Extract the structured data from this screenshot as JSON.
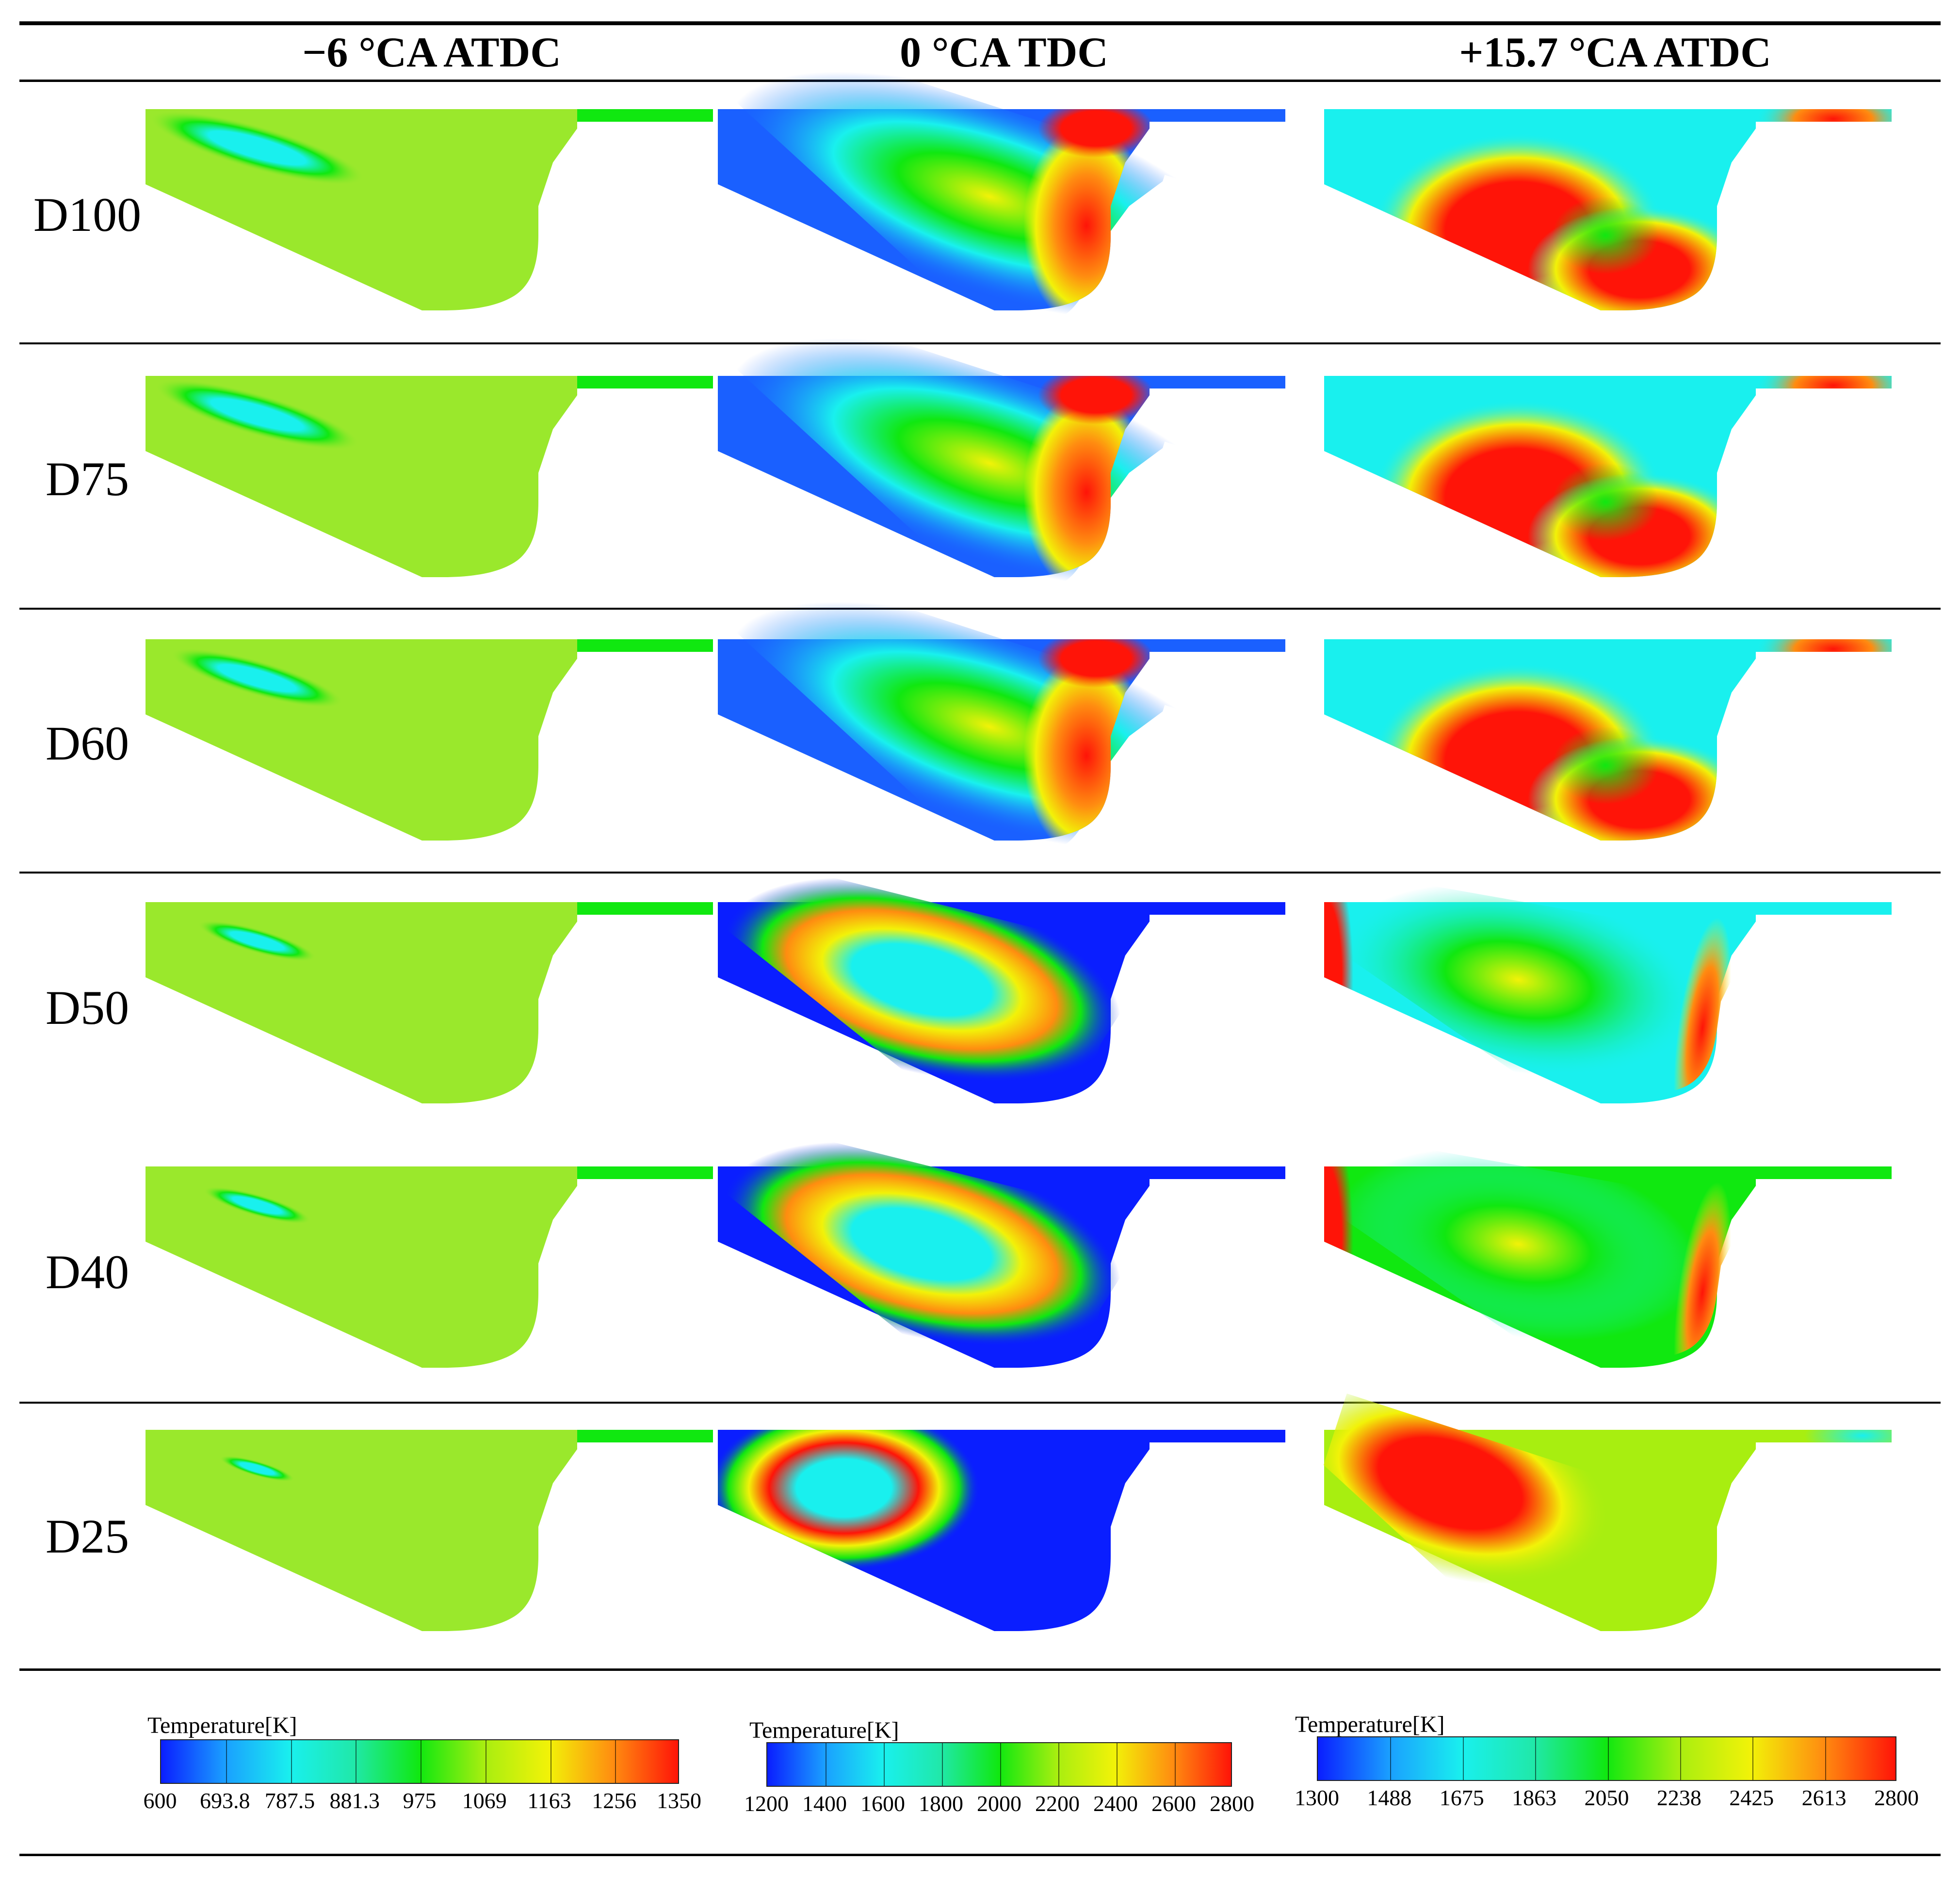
{
  "columns": [
    "−6 °CA ATDC",
    "0 °CA TDC",
    "+15.7 °CA ATDC"
  ],
  "rows": [
    "D100",
    "D75",
    "D60",
    "D50",
    "D40",
    "D25"
  ],
  "legends": [
    {
      "title": "Temperature[K]",
      "ticks": [
        "600",
        "693.8",
        "787.5",
        "881.3",
        "975",
        "1069",
        "1163",
        "1256",
        "1350"
      ]
    },
    {
      "title": "Temperature[K]",
      "ticks": [
        "1200",
        "1400",
        "1600",
        "1800",
        "2000",
        "2200",
        "2400",
        "2600",
        "2800"
      ]
    },
    {
      "title": "Temperature[K]",
      "ticks": [
        "1300",
        "1488",
        "1675",
        "1863",
        "2050",
        "2238",
        "2425",
        "2613",
        "2800"
      ]
    }
  ],
  "colors": {
    "blue": "#0a1eff",
    "cyan": "#19f0ee",
    "green": "#10e810",
    "yellow_green": "#a8ee10",
    "yellow": "#f2f208",
    "orange": "#ff8c10",
    "red": "#ff1408",
    "uniform_green": "#9ae82c"
  }
}
